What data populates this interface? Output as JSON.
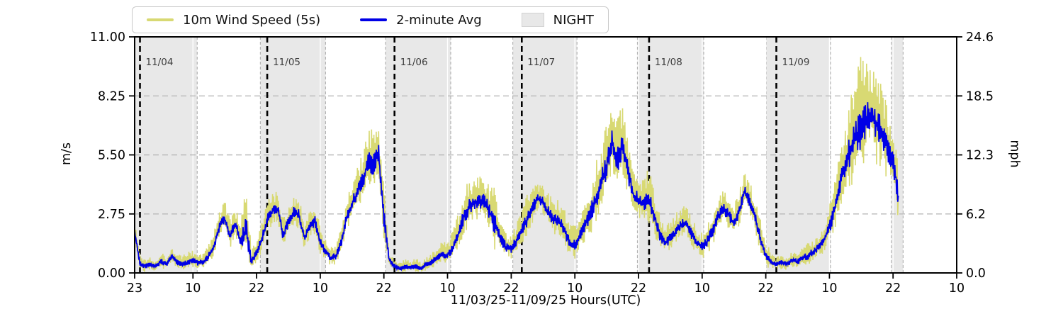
{
  "legend": {
    "items": [
      {
        "label": "10m Wind Speed (5s)",
        "type": "line",
        "color": "#d8d973"
      },
      {
        "label": "2-minute Avg",
        "type": "line",
        "color": "#0000e6"
      },
      {
        "label": "NIGHT",
        "type": "patch",
        "color": "#e8e8e8"
      }
    ]
  },
  "axes": {
    "left_label": "m/s",
    "right_label": "mph",
    "x_label": "11/03/25-11/09/25  Hours(UTC)",
    "left_tick_labels": [
      "0.00",
      "2.75",
      "5.50",
      "8.25",
      "11.00"
    ],
    "right_tick_labels": [
      "0.0",
      "6.2",
      "12.3",
      "18.5",
      "24.6"
    ],
    "x_tick_labels": [
      "23",
      "10",
      "22",
      "10",
      "22",
      "10",
      "22",
      "10",
      "22",
      "10",
      "22",
      "10",
      "22",
      "10"
    ]
  },
  "colors": {
    "gust_line": "#d8d973",
    "avg_line": "#0000e6",
    "night_fill": "#e8e8e8",
    "night_edge": "#b3b3b3",
    "grid": "#b9b9b9",
    "white_grid": "#ffffff",
    "midnight_line": "#000000",
    "date_label": "#3d3d3d",
    "frame": "#000000"
  },
  "chart_data": {
    "type": "line",
    "title": "",
    "xlabel": "11/03/25-11/09/25  Hours(UTC)",
    "ylabel_left": "m/s",
    "ylabel_right": "mph",
    "x_unit": "hours since 11/03/25 23:00 UTC",
    "x_range_hours": [
      0,
      155
    ],
    "ylim_ms": [
      0,
      11.0
    ],
    "ylim_mph": [
      0,
      24.6
    ],
    "y_ticks_ms": [
      0.0,
      2.75,
      5.5,
      8.25,
      11.0
    ],
    "y_ticks_mph": [
      0.0,
      6.2,
      12.3,
      18.5,
      24.6
    ],
    "x_ticks_hours": [
      0,
      11,
      23,
      35,
      47,
      59,
      71,
      83,
      95,
      107,
      119,
      131,
      143,
      155
    ],
    "x_tick_labels": [
      "23",
      "10",
      "22",
      "10",
      "22",
      "10",
      "22",
      "10",
      "22",
      "10",
      "22",
      "10",
      "22",
      "10"
    ],
    "grid": "horizontal dashed at y ticks; white vertical lines at x ticks",
    "legend_position": "top outside, horizontal",
    "night_spans_hours": [
      [
        0,
        11.8
      ],
      [
        23.7,
        36.0
      ],
      [
        47.3,
        59.6
      ],
      [
        71.3,
        83.4
      ],
      [
        94.8,
        107.3
      ],
      [
        119.1,
        131.2
      ],
      [
        142.7,
        144.9
      ]
    ],
    "midnight_lines": {
      "hours": [
        1,
        25,
        49,
        73,
        97,
        121
      ],
      "labels": [
        "11/04",
        "11/05",
        "11/06",
        "11/07",
        "11/08",
        "11/09"
      ]
    },
    "hours_step": 1,
    "series": [
      {
        "name": "2-minute Avg",
        "key": "avg_ms",
        "color": "#0000e6"
      },
      {
        "name": "10m Wind Speed (5s)",
        "key": "gust_ms",
        "color": "#d8d973",
        "note": "5-second samples oscillating between lull and gust envelope; gust_ms is hourly max"
      }
    ],
    "avg_ms": [
      1.9,
      0.45,
      0.3,
      0.4,
      0.3,
      0.55,
      0.4,
      0.8,
      0.5,
      0.4,
      0.5,
      0.6,
      0.45,
      0.5,
      0.8,
      1.3,
      2.2,
      2.5,
      1.7,
      2.3,
      1.4,
      2.1,
      0.5,
      0.9,
      1.6,
      2.5,
      2.9,
      3.0,
      1.7,
      2.4,
      2.8,
      2.7,
      1.6,
      2.2,
      2.4,
      1.4,
      1.0,
      0.7,
      0.8,
      1.5,
      2.6,
      3.2,
      3.8,
      4.3,
      5.2,
      5.0,
      5.6,
      2.6,
      0.6,
      0.3,
      0.2,
      0.3,
      0.25,
      0.3,
      0.2,
      0.4,
      0.5,
      0.7,
      0.9,
      0.8,
      1.2,
      1.8,
      2.6,
      3.0,
      3.3,
      3.3,
      3.4,
      2.8,
      2.2,
      1.6,
      1.2,
      1.1,
      1.5,
      2.0,
      2.5,
      3.0,
      3.5,
      3.3,
      2.8,
      2.5,
      2.4,
      2.0,
      1.4,
      1.3,
      1.8,
      2.3,
      2.8,
      3.5,
      4.2,
      5.0,
      6.2,
      5.2,
      6.0,
      4.8,
      3.6,
      3.4,
      3.2,
      3.4,
      2.6,
      1.8,
      1.4,
      1.6,
      1.9,
      2.2,
      2.4,
      1.8,
      1.4,
      1.2,
      1.5,
      2.0,
      2.6,
      3.0,
      2.7,
      2.3,
      2.9,
      3.8,
      3.3,
      2.6,
      1.6,
      0.8,
      0.5,
      0.4,
      0.5,
      0.4,
      0.6,
      0.5,
      0.7,
      0.8,
      1.0,
      1.2,
      1.5,
      2.1,
      3.0,
      4.2,
      5.0,
      5.8,
      6.3,
      6.8,
      7.2,
      7.4,
      6.9,
      6.5,
      5.8,
      5.2,
      3.6
    ],
    "gust_ms": [
      2.4,
      0.9,
      0.7,
      0.8,
      0.65,
      1.0,
      0.8,
      1.25,
      0.95,
      0.8,
      1.0,
      1.1,
      0.9,
      1.0,
      1.4,
      2.0,
      3.0,
      3.45,
      2.6,
      3.1,
      2.3,
      4.2,
      1.1,
      1.6,
      2.4,
      3.3,
      3.9,
      3.8,
      2.6,
      3.2,
      3.7,
      3.6,
      2.4,
      3.0,
      3.4,
      2.2,
      1.6,
      1.2,
      1.4,
      2.3,
      3.5,
      4.2,
      5.0,
      5.6,
      6.8,
      6.7,
      6.9,
      4.1,
      1.1,
      0.6,
      0.5,
      0.65,
      0.55,
      0.7,
      0.5,
      0.8,
      0.95,
      1.2,
      1.5,
      1.4,
      2.0,
      2.8,
      3.8,
      4.4,
      4.7,
      4.5,
      4.6,
      4.0,
      4.0,
      2.5,
      2.0,
      1.8,
      2.3,
      3.0,
      3.7,
      4.0,
      4.4,
      4.2,
      3.8,
      3.5,
      3.4,
      3.0,
      2.3,
      2.2,
      2.8,
      3.4,
      4.2,
      5.2,
      6.2,
      7.0,
      8.1,
      7.2,
      8.0,
      6.6,
      5.0,
      4.6,
      4.4,
      5.0,
      3.8,
      2.8,
      2.2,
      2.4,
      2.8,
      3.1,
      3.2,
      2.6,
      2.2,
      2.0,
      2.4,
      3.0,
      3.6,
      3.9,
      3.6,
      3.2,
      3.9,
      4.7,
      4.3,
      3.6,
      2.5,
      1.5,
      1.0,
      0.8,
      0.95,
      0.8,
      1.1,
      1.0,
      1.2,
      1.4,
      1.6,
      1.9,
      2.3,
      3.1,
      4.4,
      5.8,
      7.0,
      8.2,
      9.6,
      10.3,
      9.8,
      9.3,
      9.9,
      8.8,
      8.0,
      7.2,
      5.2
    ]
  }
}
